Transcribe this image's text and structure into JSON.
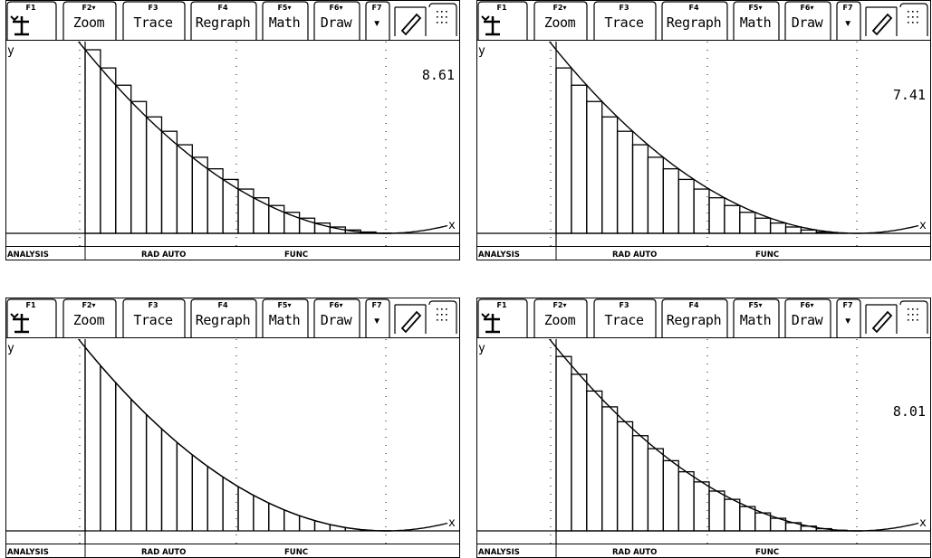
{
  "toolbar": {
    "keys": [
      {
        "key": "F1",
        "label": ""
      },
      {
        "key": "F2▾",
        "label": "Zoom"
      },
      {
        "key": "F3",
        "label": "Trace"
      },
      {
        "key": "F4",
        "label": "Regraph"
      },
      {
        "key": "F5▾",
        "label": "Math"
      },
      {
        "key": "F6▾",
        "label": "Draw"
      },
      {
        "key": "F7",
        "label": "▾"
      }
    ],
    "icons": [
      "menu-tool-icon",
      "pencil-icon",
      "dotted-grid-icon"
    ]
  },
  "graph": {
    "y_label": "y",
    "x_label": "x",
    "function": "quadratic decreasing to minimum then rising",
    "rectangle_count": 20
  },
  "status_bar": {
    "mode": "ANALYSIS",
    "angle": "RAD AUTO",
    "graph_mode": "FUNC"
  },
  "screens": [
    {
      "value": "8.61",
      "rule": "left"
    },
    {
      "value": "7.41",
      "rule": "right"
    },
    {
      "value": "",
      "rule": "trapezoid"
    },
    {
      "value": "8.01",
      "rule": "midpoint"
    }
  ],
  "colors": {
    "ink": "#000000",
    "background": "#ffffff"
  }
}
